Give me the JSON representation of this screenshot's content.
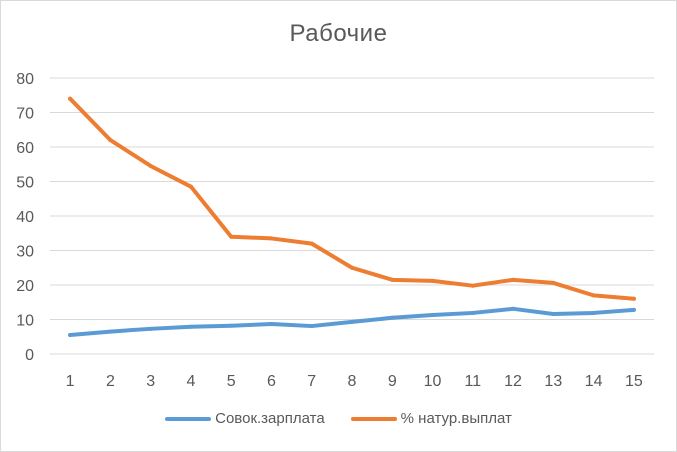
{
  "chart_data": {
    "type": "line",
    "title": "Рабочие",
    "xlabel": "",
    "ylabel": "",
    "categories": [
      "1",
      "2",
      "3",
      "4",
      "5",
      "6",
      "7",
      "8",
      "9",
      "10",
      "11",
      "12",
      "13",
      "14",
      "15"
    ],
    "yticks": [
      "0",
      "10",
      "20",
      "30",
      "40",
      "50",
      "60",
      "70",
      "80"
    ],
    "ylim": [
      0,
      80
    ],
    "grid": true,
    "legend_position": "bottom",
    "series": [
      {
        "name": "Совок.зарплата",
        "color": "#5b9bd5",
        "values": [
          5.5,
          6.5,
          7.3,
          7.9,
          8.2,
          8.7,
          8.1,
          9.3,
          10.5,
          11.3,
          11.9,
          13.1,
          11.6,
          11.9,
          12.8
        ]
      },
      {
        "name": "% натур.выплат",
        "color": "#ed7d31",
        "values": [
          74,
          62,
          54.5,
          48.5,
          34,
          33.5,
          32,
          25,
          21.5,
          21.2,
          19.8,
          21.5,
          20.6,
          17,
          16
        ]
      }
    ]
  }
}
